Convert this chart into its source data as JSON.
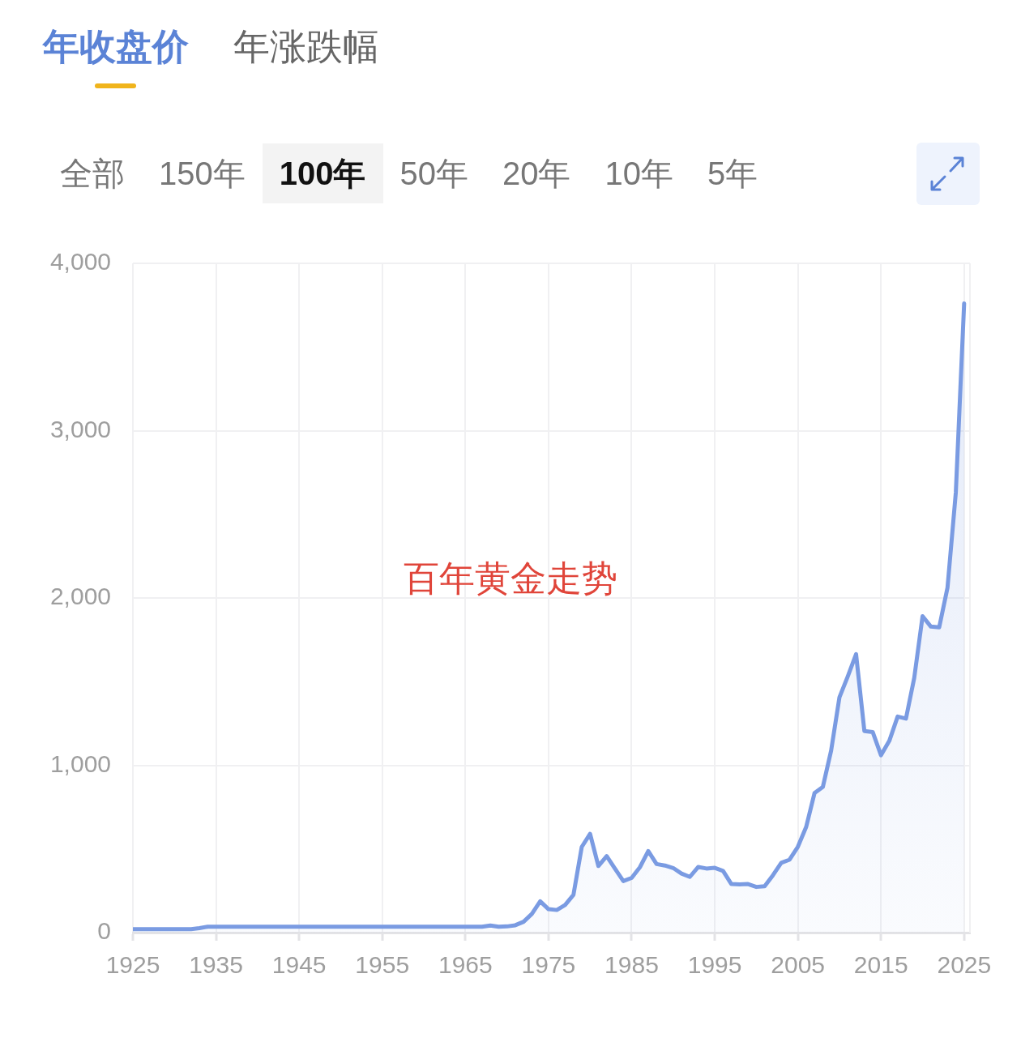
{
  "chart_data": {
    "type": "area",
    "title": "百年黄金走势",
    "annotations": [
      "年收盘价",
      "年涨跌幅",
      "全部",
      "150年",
      "100年",
      "50年",
      "20年",
      "10年",
      "5年"
    ],
    "x": [
      1925,
      1926,
      1927,
      1928,
      1929,
      1930,
      1931,
      1932,
      1933,
      1934,
      1935,
      1936,
      1937,
      1938,
      1939,
      1940,
      1941,
      1942,
      1943,
      1944,
      1945,
      1946,
      1947,
      1948,
      1949,
      1950,
      1951,
      1952,
      1953,
      1954,
      1955,
      1956,
      1957,
      1958,
      1959,
      1960,
      1961,
      1962,
      1963,
      1964,
      1965,
      1966,
      1967,
      1968,
      1969,
      1970,
      1971,
      1972,
      1973,
      1974,
      1975,
      1976,
      1977,
      1978,
      1979,
      1980,
      1981,
      1982,
      1983,
      1984,
      1985,
      1986,
      1987,
      1988,
      1989,
      1990,
      1991,
      1992,
      1993,
      1994,
      1995,
      1996,
      1997,
      1998,
      1999,
      2000,
      2001,
      2002,
      2003,
      2004,
      2005,
      2006,
      2007,
      2008,
      2009,
      2010,
      2011,
      2012,
      2013,
      2014,
      2015,
      2016,
      2017,
      2018,
      2019,
      2020,
      2021,
      2022,
      2023,
      2024,
      2025
    ],
    "values": [
      21,
      21,
      21,
      21,
      21,
      21,
      21,
      21,
      27,
      35,
      35,
      35,
      35,
      35,
      35,
      35,
      35,
      35,
      35,
      35,
      35,
      35,
      35,
      35,
      35,
      35,
      35,
      35,
      35,
      35,
      35,
      35,
      35,
      35,
      35,
      35,
      35,
      35,
      35,
      35,
      35,
      35,
      35,
      42,
      35,
      37,
      44,
      65,
      112,
      187,
      140,
      135,
      165,
      226,
      512,
      590,
      398,
      457,
      382,
      308,
      327,
      391,
      487,
      410,
      401,
      386,
      353,
      333,
      392,
      383,
      387,
      369,
      290,
      288,
      290,
      273,
      277,
      343,
      417,
      436,
      513,
      632,
      834,
      870,
      1088,
      1406,
      1531,
      1664,
      1205,
      1199,
      1060,
      1146,
      1291,
      1279,
      1523,
      1891,
      1829,
      1824,
      2062,
      2630,
      3760
    ],
    "color": "#7a9be2",
    "xlim": [
      1925,
      2025.7
    ],
    "xticks": [
      1925,
      1935,
      1945,
      1955,
      1965,
      1975,
      1985,
      1995,
      2005,
      2015,
      2025
    ],
    "ylim": [
      0,
      4000
    ],
    "yticks": [
      0,
      {
        "value": 1000,
        "label": "1,000"
      },
      {
        "value": 2000,
        "label": "2,000"
      },
      {
        "value": 3000,
        "label": "3,000"
      },
      {
        "value": 4000,
        "label": "4,000"
      }
    ],
    "grid": true,
    "line_style": "solid"
  }
}
